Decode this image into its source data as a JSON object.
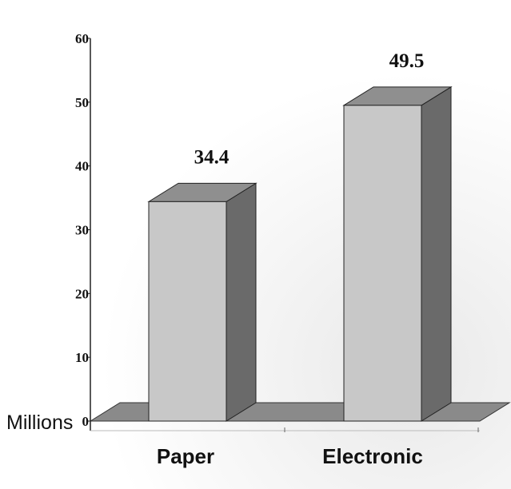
{
  "chart_data": {
    "type": "bar",
    "categories": [
      "Paper",
      "Electronic"
    ],
    "values": [
      34.4,
      49.5
    ],
    "value_labels": [
      "34.4",
      "49.5"
    ],
    "ylabel": "Millions",
    "ylim": [
      0,
      60
    ],
    "yticks": [
      "0",
      "10",
      "20",
      "30",
      "40",
      "50",
      "60"
    ],
    "grid": false,
    "three_d": true,
    "colors": {
      "bar_front": "#c8c8c8",
      "bar_top": "#8f8f8f",
      "bar_side": "#6a6a6a",
      "floor": "#8a8a8a",
      "axis": "#222222"
    }
  }
}
